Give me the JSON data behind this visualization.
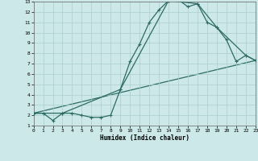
{
  "title": "",
  "xlabel": "Humidex (Indice chaleur)",
  "xlim": [
    0,
    23
  ],
  "ylim": [
    1,
    13
  ],
  "xticks": [
    0,
    1,
    2,
    3,
    4,
    5,
    6,
    7,
    8,
    9,
    10,
    11,
    12,
    13,
    14,
    15,
    16,
    17,
    18,
    19,
    20,
    21,
    22,
    23
  ],
  "yticks": [
    1,
    2,
    3,
    4,
    5,
    6,
    7,
    8,
    9,
    10,
    11,
    12,
    13
  ],
  "bg_color": "#cce8e8",
  "grid_color": "#aacece",
  "line_color": "#2d6b65",
  "line1_x": [
    0,
    1,
    2,
    3,
    4,
    5,
    6,
    7,
    8,
    9,
    10,
    11,
    12,
    13,
    14,
    15,
    16,
    17,
    18,
    19,
    20,
    21,
    22,
    23
  ],
  "line1_y": [
    2.2,
    2.2,
    1.5,
    2.2,
    2.2,
    2.0,
    1.8,
    1.8,
    2.0,
    4.5,
    7.2,
    8.9,
    11.0,
    12.2,
    13.1,
    13.2,
    12.5,
    12.8,
    11.0,
    10.5,
    9.3,
    7.2,
    7.8,
    7.3
  ],
  "line2_x": [
    0,
    3,
    9,
    14,
    17,
    19,
    22,
    23
  ],
  "line2_y": [
    2.2,
    2.2,
    4.5,
    13.1,
    12.8,
    10.5,
    7.8,
    7.3
  ],
  "line3_x": [
    0,
    23
  ],
  "line3_y": [
    2.2,
    7.3
  ]
}
